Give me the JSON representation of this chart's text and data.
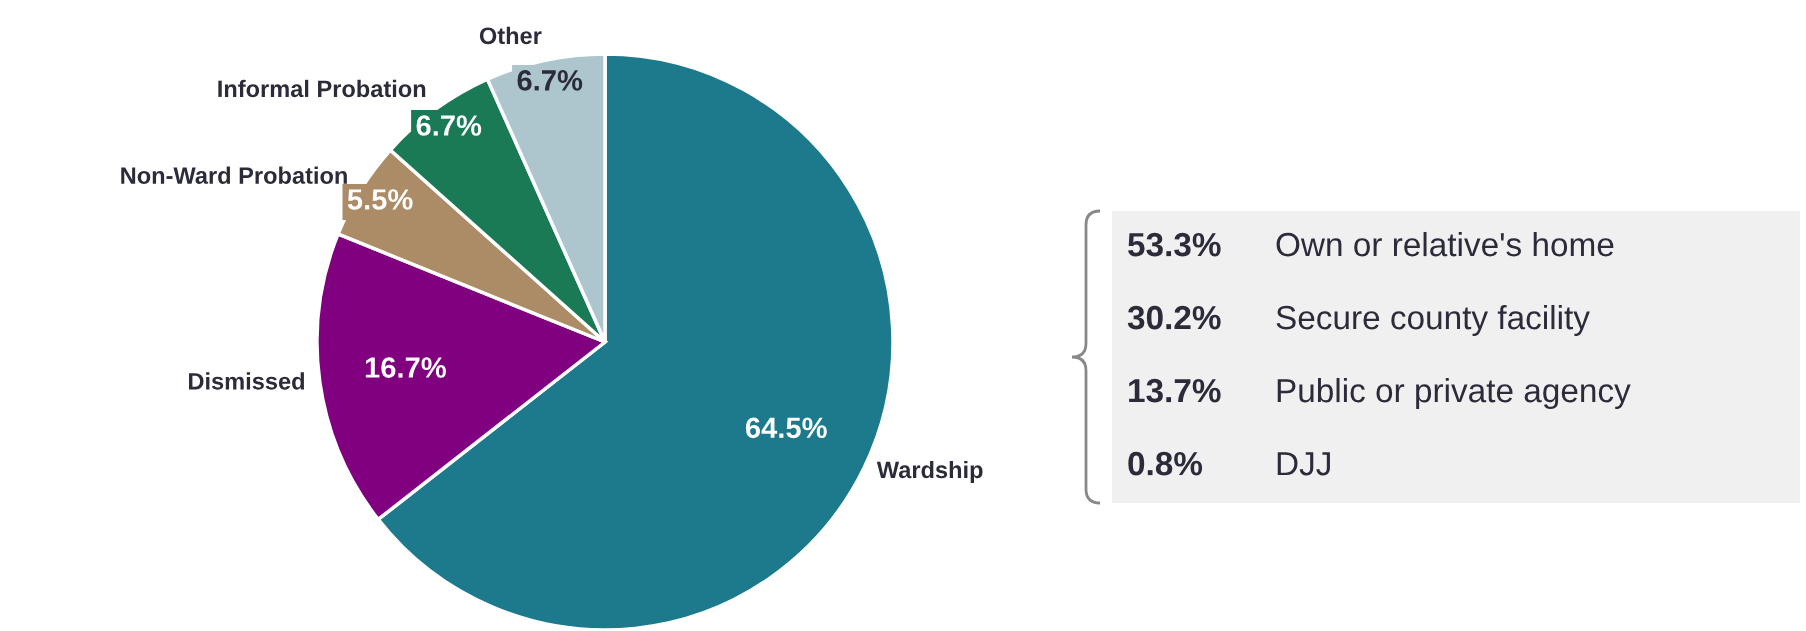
{
  "chart_data": {
    "type": "pie",
    "categories": [
      "Wardship",
      "Dismissed",
      "Non-Ward Probation",
      "Informal Probation",
      "Other"
    ],
    "values": [
      64.5,
      16.7,
      5.5,
      6.7,
      6.7
    ],
    "colors": [
      "#1c7a8c",
      "#800080",
      "#ab8c66",
      "#1a7a55",
      "#adc5cc"
    ],
    "value_labels": [
      "64.5%",
      "16.7%",
      "5.5%",
      "6.7%",
      "6.7%"
    ],
    "annotations": [
      "53.3%",
      "Own or relative's home",
      "30.2%",
      "Secure county facility",
      "13.7%",
      "Public or private agency",
      "0.8%",
      "DJJ"
    ]
  }
}
